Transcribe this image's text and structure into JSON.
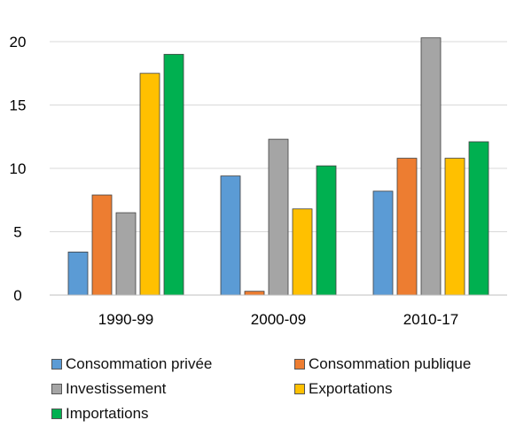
{
  "chart_data": {
    "type": "bar",
    "categories": [
      "1990-99",
      "2000-09",
      "2010-17"
    ],
    "series": [
      {
        "name": "Consommation privée",
        "color": "#5B9BD5",
        "values": [
          3.4,
          9.4,
          8.2
        ]
      },
      {
        "name": "Consommation publique",
        "color": "#ED7D31",
        "values": [
          7.9,
          0.3,
          10.8
        ]
      },
      {
        "name": "Investissement",
        "color": "#A5A5A5",
        "values": [
          6.5,
          12.3,
          20.3
        ]
      },
      {
        "name": "Exportations",
        "color": "#FFC000",
        "values": [
          17.5,
          6.8,
          10.8
        ]
      },
      {
        "name": "Importations",
        "color": "#00B050",
        "values": [
          19.0,
          10.2,
          12.1
        ]
      }
    ],
    "yticks": [
      "0",
      "5",
      "10",
      "15",
      "20"
    ],
    "ylim": [
      0,
      20
    ],
    "grid": true,
    "legend_position": "bottom"
  }
}
